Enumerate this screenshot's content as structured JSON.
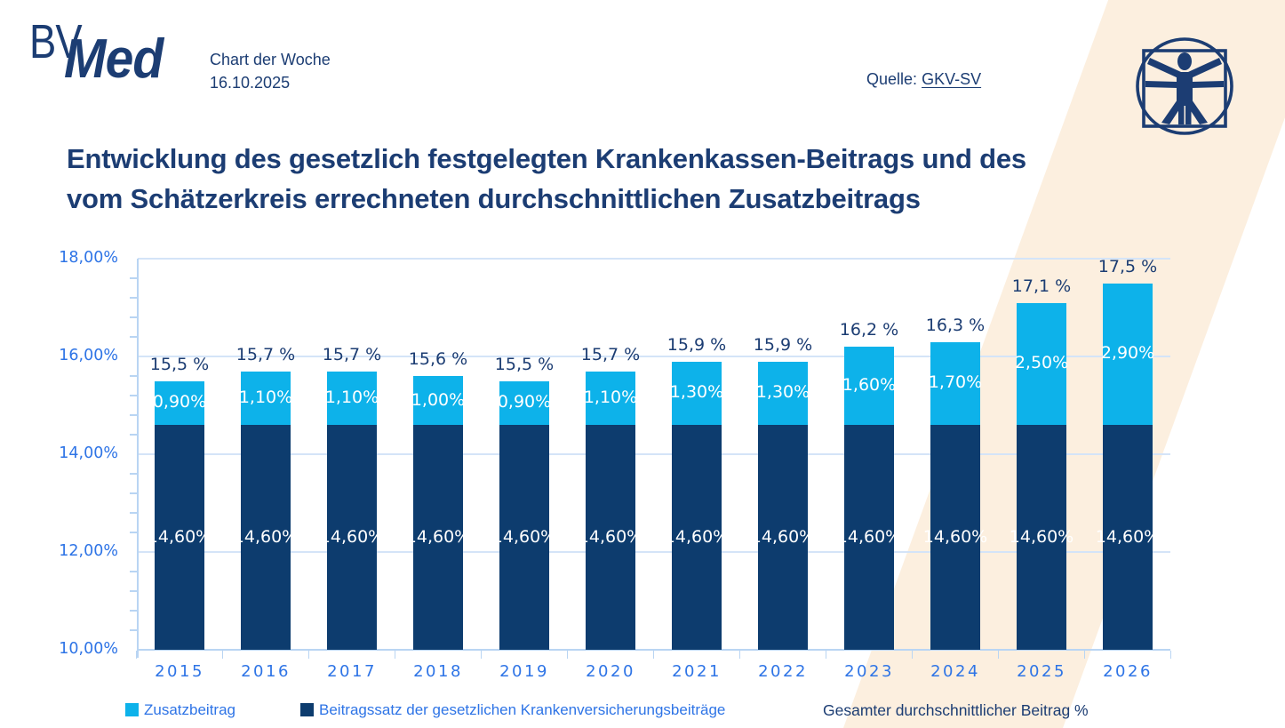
{
  "header": {
    "logo_bv": "BV",
    "logo_med": "Med",
    "tagline_line1": "Chart der Woche",
    "tagline_line2": "16.10.2025",
    "source_label": "Quelle:",
    "source_link": "GKV-SV",
    "logo_icon": "vitruvian-man-icon"
  },
  "title": {
    "line1": "Entwicklung des gesetzlich festgelegten Krankenkassen-Beitrags und des",
    "line2": "vom Schätzerkreis errechneten durchschnittlichen Zusatzbeitrags"
  },
  "chart_data": {
    "type": "bar",
    "stacked": true,
    "categories": [
      "2015",
      "2016",
      "2017",
      "2018",
      "2019",
      "2020",
      "2021",
      "2022",
      "2023",
      "2024",
      "2025",
      "2026"
    ],
    "series": [
      {
        "name": "Beitragssatz der gesetzlichen Krankenversicherungsbeiträge",
        "color": "#0d3c6e",
        "values": [
          14.6,
          14.6,
          14.6,
          14.6,
          14.6,
          14.6,
          14.6,
          14.6,
          14.6,
          14.6,
          14.6,
          14.6
        ],
        "labels": [
          "14,60%",
          "14,60%",
          "14,60%",
          "14,60%",
          "14,60%",
          "14,60%",
          "14,60%",
          "14,60%",
          "14,60%",
          "14,60%",
          "14,60%",
          "14,60%"
        ]
      },
      {
        "name": "Zusatzbeitrag",
        "color": "#0db2ea",
        "values": [
          0.9,
          1.1,
          1.1,
          1.0,
          0.9,
          1.1,
          1.3,
          1.3,
          1.6,
          1.7,
          2.5,
          2.9
        ],
        "labels": [
          "0,90%",
          "1,10%",
          "1,10%",
          "1,00%",
          "0,90%",
          "1,10%",
          "1,30%",
          "1,30%",
          "1,60%",
          "1,70%",
          "2,50%",
          "2,90%"
        ]
      }
    ],
    "totals": [
      15.5,
      15.7,
      15.7,
      15.6,
      15.5,
      15.7,
      15.9,
      15.9,
      16.2,
      16.3,
      17.1,
      17.5
    ],
    "total_labels": [
      "15,5 %",
      "15,7 %",
      "15,7 %",
      "15,6 %",
      "15,5 %",
      "15,7 %",
      "15,9 %",
      "15,9 %",
      "16,2 %",
      "16,3 %",
      "17,1 %",
      "17,5 %"
    ],
    "y_axis": {
      "min": 10,
      "max": 18,
      "major_step": 2,
      "minor_step": 0.4,
      "ticks": [
        {
          "value": 18,
          "label": "18,00%"
        },
        {
          "value": 16,
          "label": "16,00%"
        },
        {
          "value": 14,
          "label": "14,00%"
        },
        {
          "value": 12,
          "label": "12,00%"
        },
        {
          "value": 10,
          "label": "10,00%"
        }
      ]
    },
    "grid": true,
    "legend_position": "bottom",
    "xlabel": "",
    "ylabel": ""
  },
  "legend": {
    "items": [
      {
        "label": "Zusatzbeitrag",
        "color": "#0db2ea"
      },
      {
        "label": "Beitragssatz der gesetzlichen Krankenversicherungsbeiträge",
        "color": "#0d3c6e"
      }
    ],
    "note": "Gesamter durchschnittlicher Beitrag %"
  },
  "colors": {
    "navy_text": "#1c3d73",
    "navy_bar": "#0d3c6e",
    "cyan": "#0db2ea",
    "blue_label": "#2e74e6",
    "gridline": "#d4e4f8",
    "axis": "#b9d5f3",
    "accent_band": "#fcefdf"
  }
}
